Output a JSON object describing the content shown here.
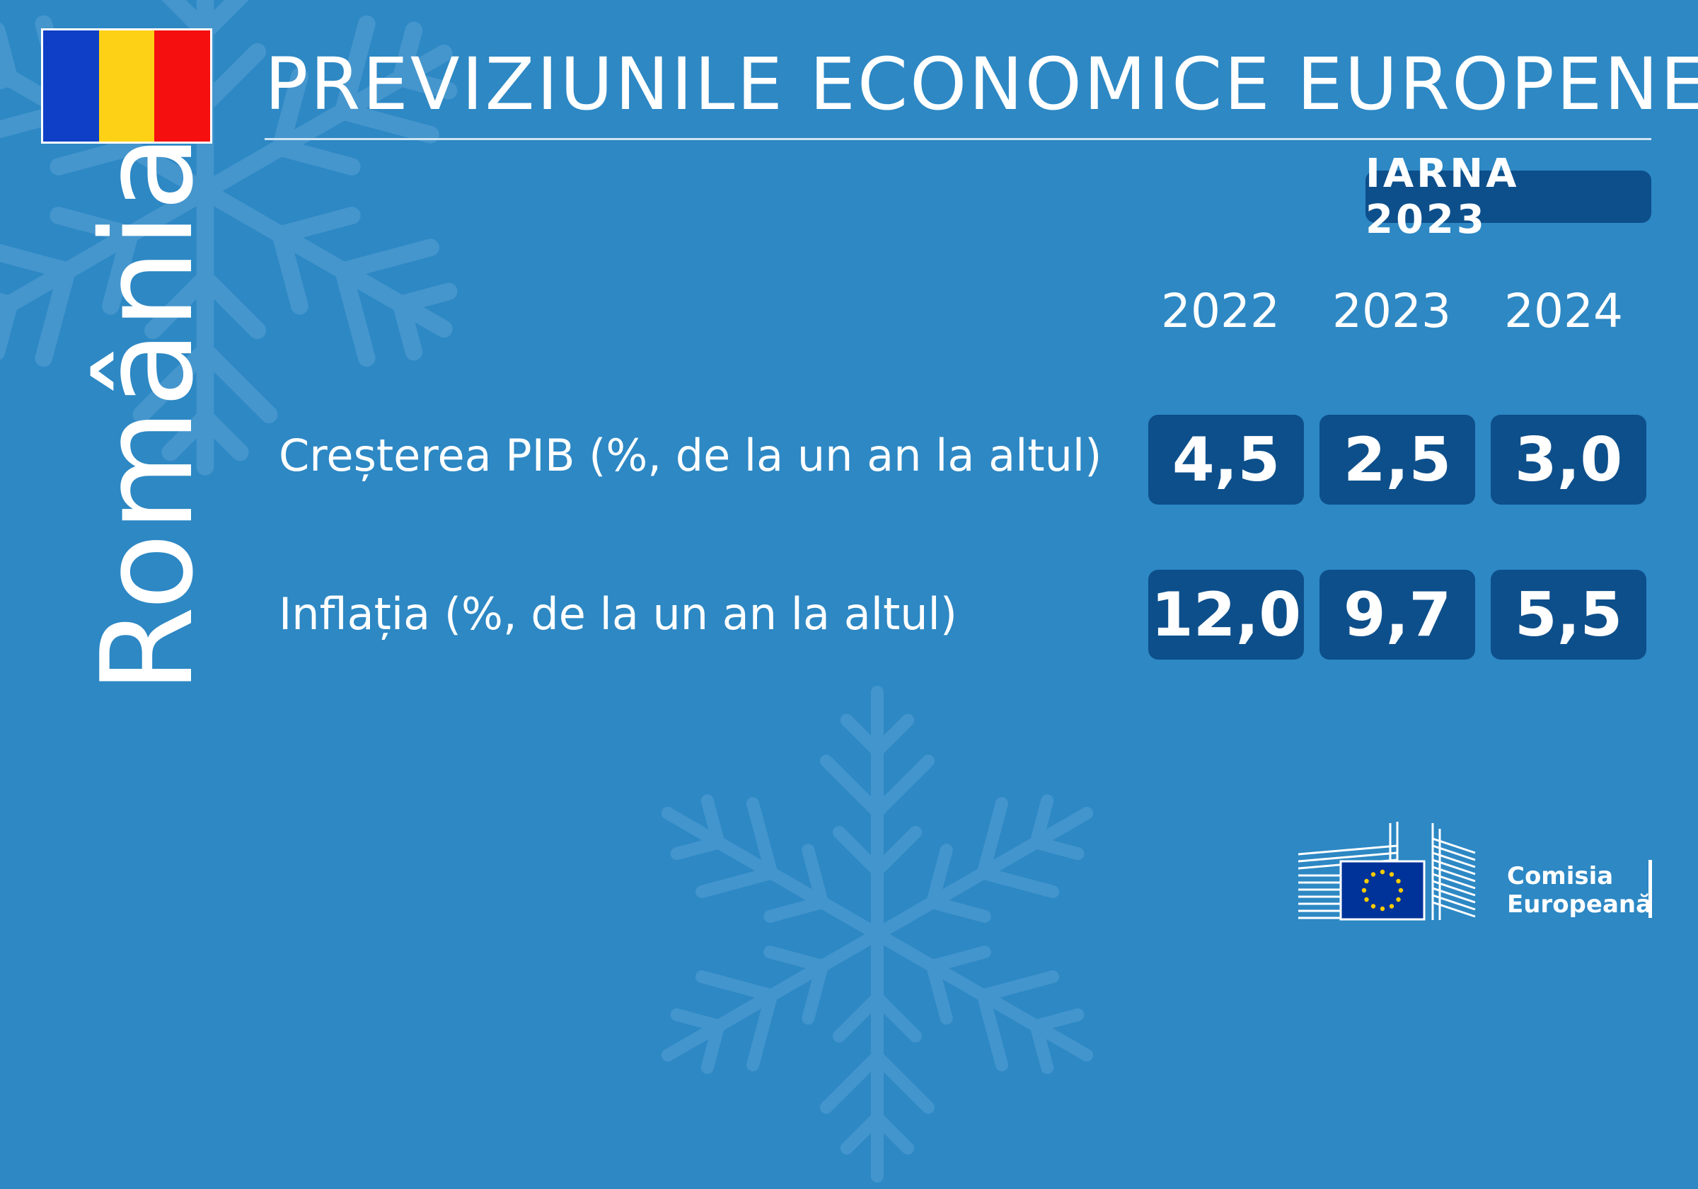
{
  "header": {
    "title": "PREVIZIUNILE ECONOMICE EUROPENE",
    "season": "IARNA 2023"
  },
  "country": {
    "name": "România",
    "flag_colors": [
      "#0f3fc6",
      "#fcd116",
      "#f50f0f"
    ]
  },
  "table": {
    "years": [
      "2022",
      "2023",
      "2024"
    ],
    "rows": [
      {
        "label": "Creșterea PIB (%, de la un an la altul)",
        "values": [
          "4,5",
          "2,5",
          "3,0"
        ]
      },
      {
        "label": "Inflația (%, de la un an la altul)",
        "values": [
          "12,0",
          "9,7",
          "5,5"
        ]
      }
    ]
  },
  "footer": {
    "org_line1": "Comisia",
    "org_line2": "Europeană",
    "logo_icon": "european-commission-logo"
  },
  "colors": {
    "background": "#2d88c4",
    "cell_fill": "#0d4f8b",
    "text": "#ffffff"
  }
}
